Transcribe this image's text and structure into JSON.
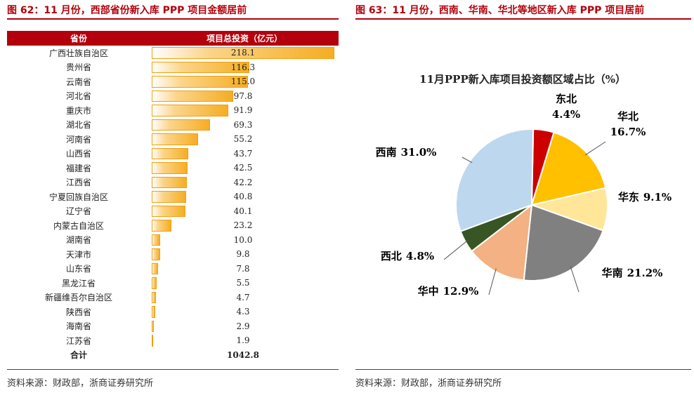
{
  "left": {
    "title": "图 62：11 月份，西部省份新入库 PPP 项目金额居前",
    "header": {
      "col1": "省份",
      "col2": "项目总投资（亿元）"
    },
    "source": "资料来源：财政部，浙商证券研究所"
  },
  "right": {
    "title": "图 63：11 月份，西南、华南、华北等地区新入库 PPP 项目居前",
    "source": "资料来源：财政部，浙商证券研究所"
  },
  "chart_data": [
    {
      "type": "bar",
      "orientation": "horizontal",
      "categories": [
        "广西壮族自治区",
        "贵州省",
        "云南省",
        "河北省",
        "重庆市",
        "湖北省",
        "河南省",
        "山西省",
        "福建省",
        "江西省",
        "宁夏回族自治区",
        "辽宁省",
        "内蒙古自治区",
        "湖南省",
        "天津市",
        "山东省",
        "黑龙江省",
        "新疆维吾尔自治区",
        "陕西省",
        "海南省",
        "江苏省"
      ],
      "values": [
        218.1,
        116.3,
        115.0,
        97.8,
        91.9,
        69.3,
        55.2,
        43.7,
        42.5,
        42.2,
        40.8,
        40.1,
        23.2,
        10.0,
        9.8,
        7.8,
        5.5,
        4.7,
        4.3,
        2.9,
        1.9
      ],
      "value_labels": [
        "218.1",
        "116.3",
        "115.0",
        "97.8",
        "91.9",
        "69.3",
        "55.2",
        "43.7",
        "42.5",
        "42.2",
        "40.8",
        "40.1",
        "23.2",
        "10.0",
        "9.8",
        "7.8",
        "5.5",
        "4.7",
        "4.3",
        "2.9",
        "1.9"
      ],
      "total_label": "合计",
      "total_value": "1042.8"
    },
    {
      "type": "pie",
      "title": "11月PPP新入库项目投资额区域占比（%）",
      "labels": [
        "东北",
        "华北",
        "华东",
        "华南",
        "华中",
        "西北",
        "西南"
      ],
      "values": [
        4.4,
        16.7,
        9.1,
        21.2,
        12.9,
        4.8,
        31.0
      ],
      "value_labels": [
        "4.4%",
        "16.7%",
        "9.1%",
        "21.2%",
        "12.9%",
        "4.8%",
        "31.0%"
      ],
      "colors": [
        "#cc0000",
        "#ffc000",
        "#ffe699",
        "#808080",
        "#f4b183",
        "#375623",
        "#bdd7ee"
      ]
    }
  ]
}
